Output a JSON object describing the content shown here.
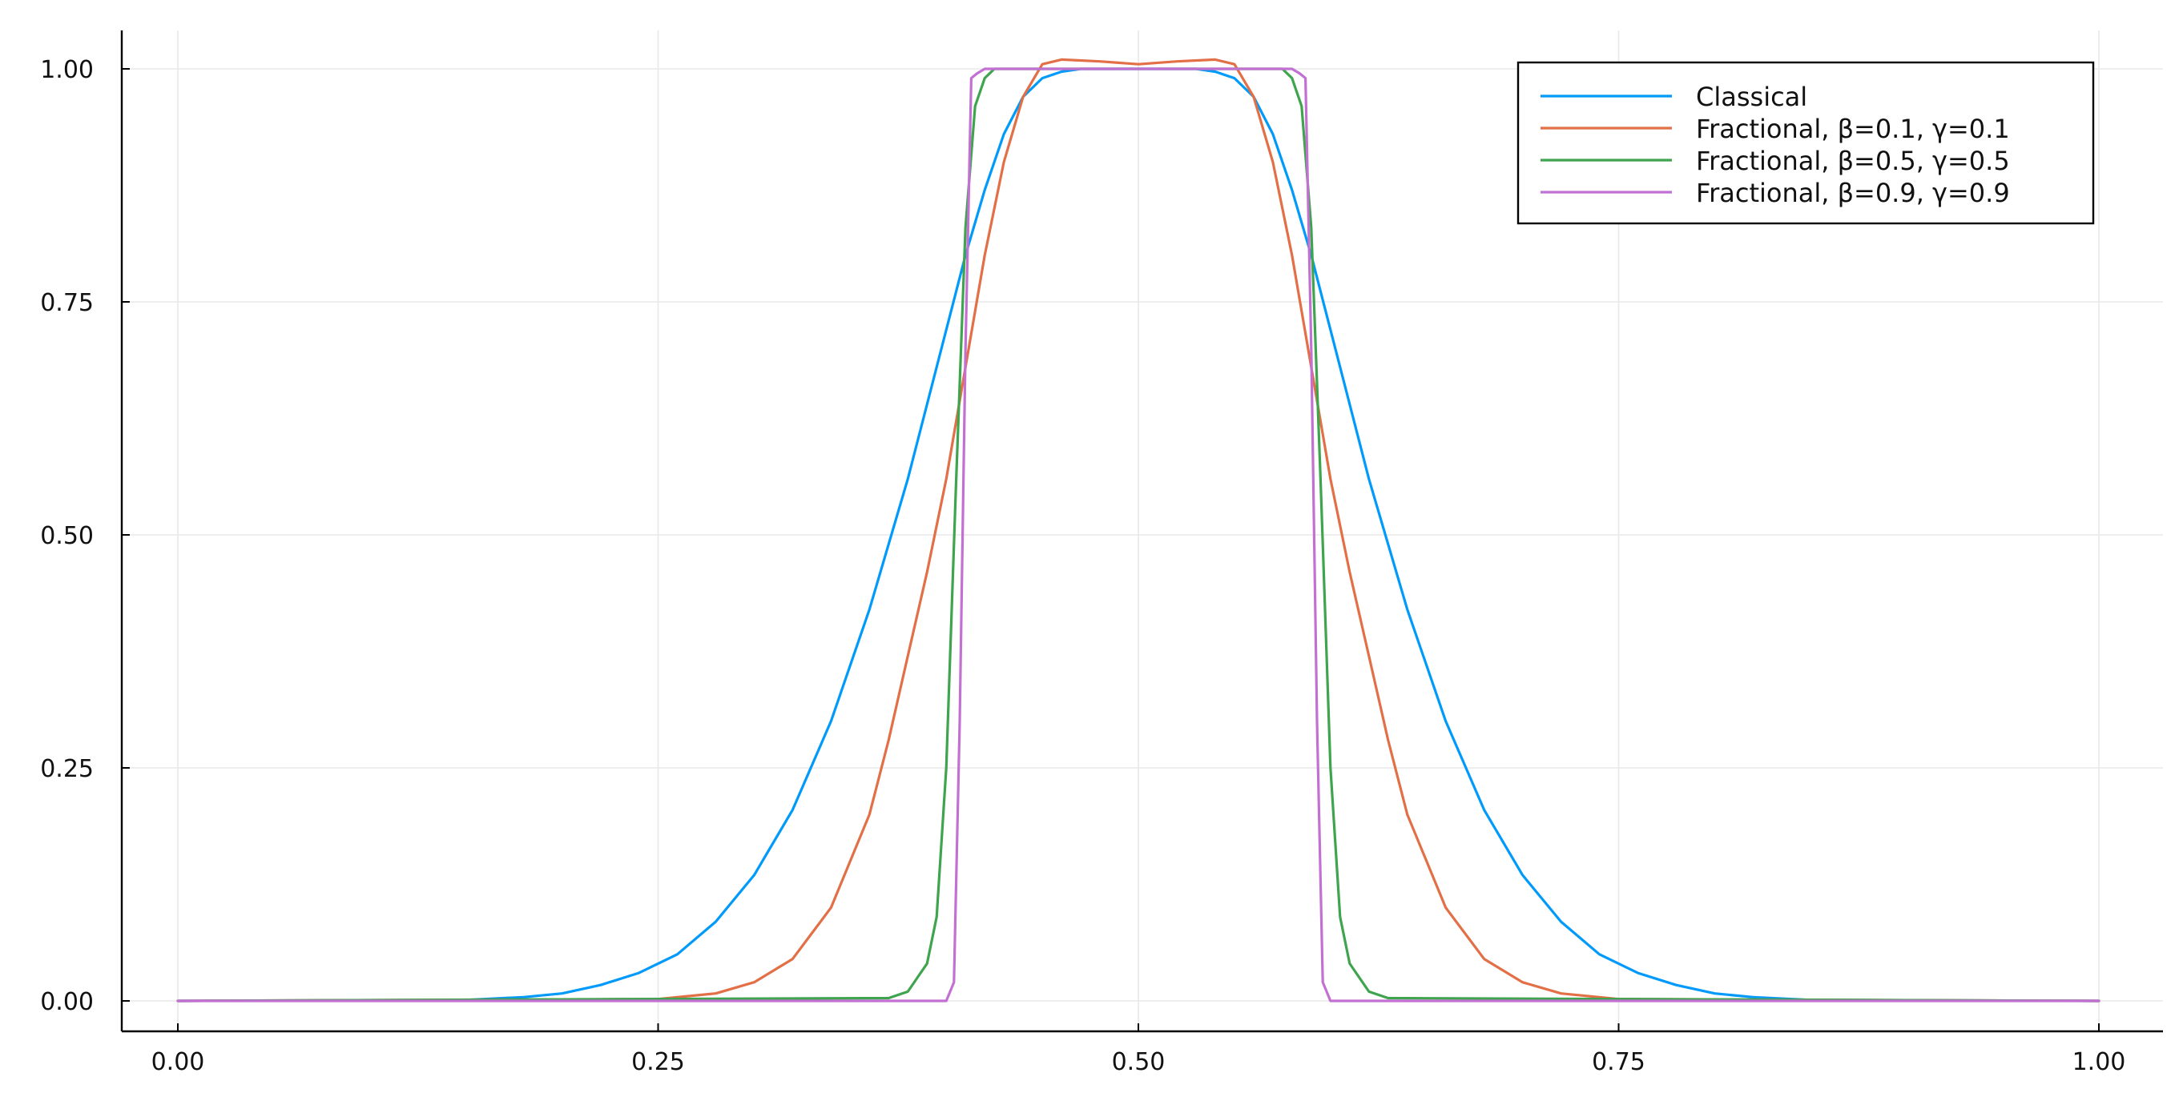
{
  "chart_data": {
    "type": "line",
    "title": "",
    "xlabel": "",
    "ylabel": "",
    "xlim": [
      0.0,
      1.0
    ],
    "ylim": [
      0.0,
      1.0
    ],
    "x_ticks": [
      "0.00",
      "0.25",
      "0.50",
      "0.75",
      "1.00"
    ],
    "y_ticks": [
      "0.00",
      "0.25",
      "0.50",
      "0.75",
      "1.00"
    ],
    "grid": true,
    "legend_position": "top-right",
    "series": [
      {
        "name": "Classical",
        "color": "#009AFA",
        "x": [
          0.0,
          0.15,
          0.18,
          0.2,
          0.22,
          0.24,
          0.26,
          0.28,
          0.3,
          0.32,
          0.34,
          0.36,
          0.38,
          0.39,
          0.4,
          0.41,
          0.42,
          0.43,
          0.44,
          0.45,
          0.46,
          0.47,
          0.5,
          0.53,
          0.54,
          0.55,
          0.56,
          0.57,
          0.58,
          0.59,
          0.6,
          0.61,
          0.62,
          0.64,
          0.66,
          0.68,
          0.7,
          0.72,
          0.74,
          0.76,
          0.78,
          0.8,
          0.82,
          0.85,
          1.0
        ],
        "y": [
          0.0,
          0.001,
          0.004,
          0.008,
          0.017,
          0.03,
          0.05,
          0.085,
          0.135,
          0.205,
          0.3,
          0.42,
          0.56,
          0.64,
          0.72,
          0.8,
          0.87,
          0.93,
          0.97,
          0.99,
          0.997,
          1.0,
          1.0,
          1.0,
          0.997,
          0.99,
          0.97,
          0.93,
          0.87,
          0.8,
          0.72,
          0.64,
          0.56,
          0.42,
          0.3,
          0.205,
          0.135,
          0.085,
          0.05,
          0.03,
          0.017,
          0.008,
          0.004,
          0.001,
          0.0
        ]
      },
      {
        "name": "Fractional, β=0.1, γ=0.1",
        "color": "#E26F46",
        "x": [
          0.0,
          0.25,
          0.28,
          0.3,
          0.32,
          0.34,
          0.36,
          0.37,
          0.38,
          0.39,
          0.4,
          0.41,
          0.42,
          0.43,
          0.44,
          0.45,
          0.46,
          0.48,
          0.5,
          0.52,
          0.54,
          0.55,
          0.56,
          0.57,
          0.58,
          0.59,
          0.6,
          0.61,
          0.62,
          0.63,
          0.64,
          0.66,
          0.68,
          0.7,
          0.72,
          0.75,
          1.0
        ],
        "y": [
          0.0,
          0.002,
          0.008,
          0.02,
          0.045,
          0.1,
          0.2,
          0.28,
          0.37,
          0.46,
          0.56,
          0.68,
          0.8,
          0.9,
          0.97,
          1.005,
          1.01,
          1.008,
          1.005,
          1.008,
          1.01,
          1.005,
          0.97,
          0.9,
          0.8,
          0.68,
          0.56,
          0.46,
          0.37,
          0.28,
          0.2,
          0.1,
          0.045,
          0.02,
          0.008,
          0.002,
          0.0
        ]
      },
      {
        "name": "Fractional, β=0.5, γ=0.5",
        "color": "#3EA44E",
        "x": [
          0.0,
          0.37,
          0.38,
          0.39,
          0.395,
          0.4,
          0.405,
          0.41,
          0.415,
          0.42,
          0.425,
          0.43,
          0.5,
          0.57,
          0.575,
          0.58,
          0.585,
          0.59,
          0.595,
          0.6,
          0.605,
          0.61,
          0.62,
          0.63,
          1.0
        ],
        "y": [
          0.0,
          0.003,
          0.01,
          0.04,
          0.09,
          0.25,
          0.55,
          0.83,
          0.96,
          0.99,
          1.0,
          1.0,
          1.0,
          1.0,
          1.0,
          0.99,
          0.96,
          0.83,
          0.55,
          0.25,
          0.09,
          0.04,
          0.01,
          0.003,
          0.0
        ]
      },
      {
        "name": "Fractional, β=0.9, γ=0.9",
        "color": "#C271D2",
        "x": [
          0.0,
          0.4,
          0.404,
          0.407,
          0.41,
          0.413,
          0.416,
          0.42,
          0.425,
          0.5,
          0.575,
          0.58,
          0.584,
          0.587,
          0.59,
          0.593,
          0.596,
          0.6,
          1.0
        ],
        "y": [
          0.0,
          0.0,
          0.02,
          0.3,
          0.7,
          0.99,
          0.995,
          1.0,
          1.0,
          1.0,
          1.0,
          1.0,
          0.995,
          0.99,
          0.7,
          0.3,
          0.02,
          0.0,
          0.0
        ]
      }
    ]
  }
}
